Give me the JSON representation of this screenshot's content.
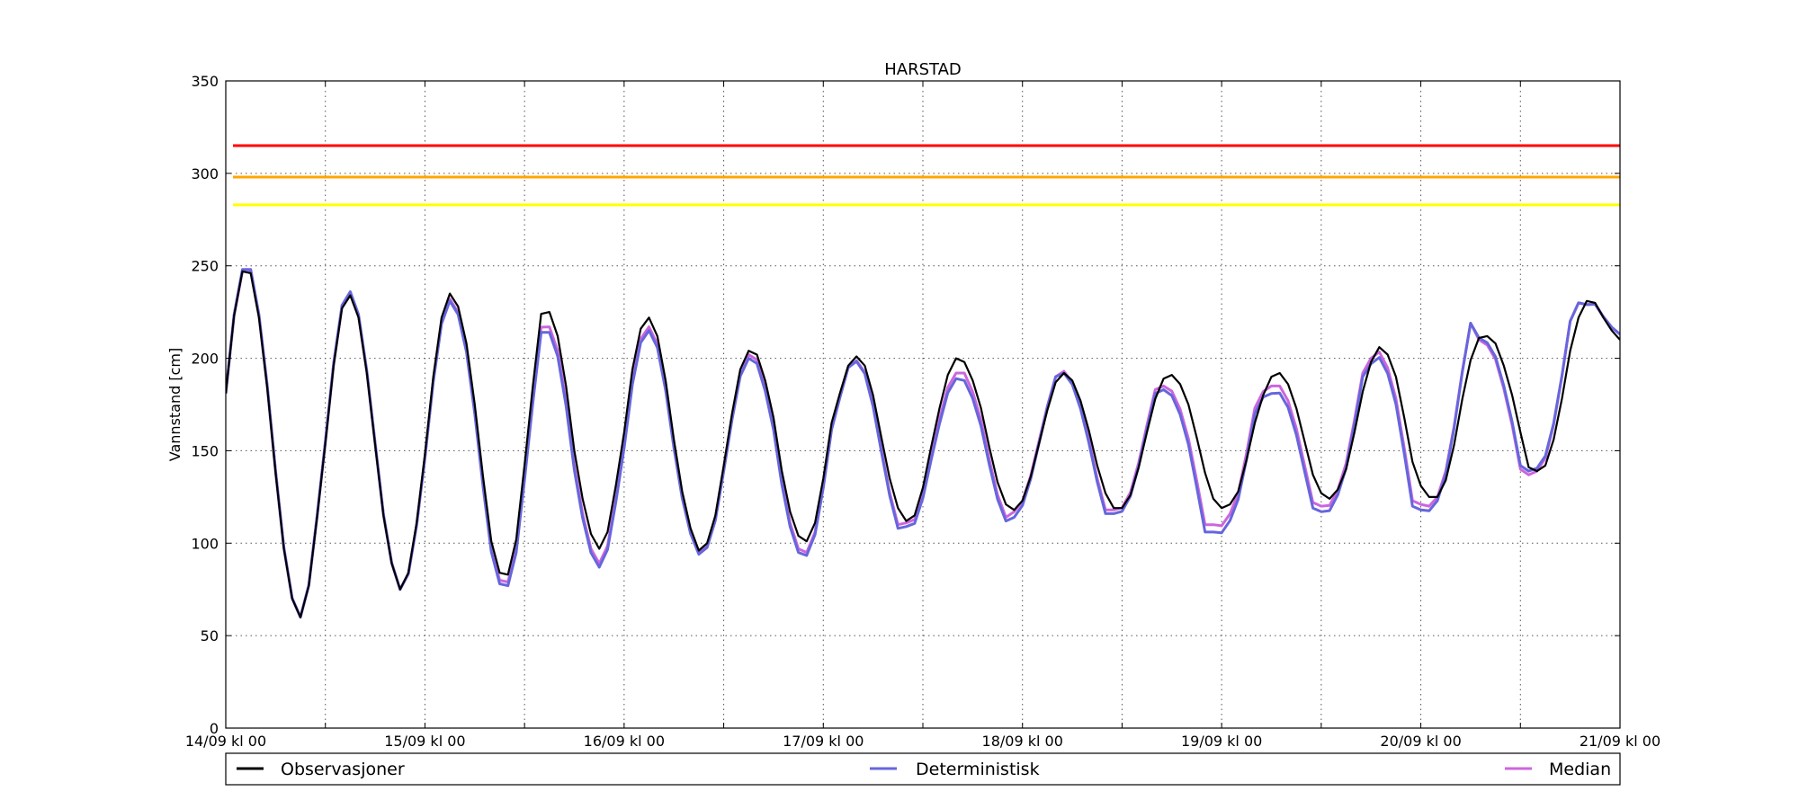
{
  "chart_data": {
    "type": "line",
    "title": "HARSTAD",
    "ylabel": "Vannstand [cm]",
    "xlabel": "",
    "ylim": [
      0,
      350
    ],
    "yticks": [
      "0",
      "50",
      "100",
      "150",
      "200",
      "250",
      "300",
      "350"
    ],
    "xlim_hours": [
      0,
      168
    ],
    "xticks": [
      "14/09 kl 00",
      "15/09 kl 00",
      "16/09 kl 00",
      "17/09 kl 00",
      "18/09 kl 00",
      "19/09 kl 00",
      "20/09 kl 00",
      "21/09 kl 00"
    ],
    "grid": true,
    "legend_position": "bottom",
    "thresholds": [
      {
        "value": 315,
        "color": "#ff0000"
      },
      {
        "value": 298,
        "color": "#ffa500"
      },
      {
        "value": 283,
        "color": "#ffff00"
      }
    ],
    "series": [
      {
        "name": "Observasjoner",
        "color": "#000000",
        "key_points": [
          [
            0,
            181
          ],
          [
            1,
            223
          ],
          [
            2,
            247
          ],
          [
            3,
            246
          ],
          [
            4,
            222
          ],
          [
            5,
            184
          ],
          [
            6,
            138
          ],
          [
            7,
            97
          ],
          [
            8,
            70
          ],
          [
            9,
            60
          ],
          [
            10,
            77
          ],
          [
            11,
            114
          ],
          [
            12,
            154
          ],
          [
            13,
            196
          ],
          [
            14,
            227
          ],
          [
            15,
            234
          ],
          [
            16,
            222
          ],
          [
            17,
            192
          ],
          [
            18,
            153
          ],
          [
            19,
            115
          ],
          [
            20,
            89
          ],
          [
            21,
            75
          ],
          [
            22,
            84
          ],
          [
            23,
            111
          ],
          [
            24,
            148
          ],
          [
            25,
            190
          ],
          [
            26,
            222
          ],
          [
            27,
            235
          ],
          [
            28,
            228
          ],
          [
            29,
            208
          ],
          [
            30,
            175
          ],
          [
            31,
            136
          ],
          [
            32,
            101
          ],
          [
            33,
            84
          ],
          [
            34,
            83
          ],
          [
            35,
            102
          ],
          [
            36,
            142
          ],
          [
            37,
            185
          ],
          [
            38,
            224
          ],
          [
            39,
            225
          ],
          [
            40,
            212
          ],
          [
            41,
            185
          ],
          [
            42,
            150
          ],
          [
            43,
            124
          ],
          [
            44,
            105
          ],
          [
            45,
            97
          ],
          [
            46,
            106
          ],
          [
            47,
            131
          ],
          [
            48,
            160
          ],
          [
            49,
            194
          ],
          [
            50,
            216
          ],
          [
            51,
            222
          ],
          [
            52,
            212
          ],
          [
            53,
            188
          ],
          [
            54,
            156
          ],
          [
            55,
            128
          ],
          [
            56,
            108
          ],
          [
            57,
            96
          ],
          [
            58,
            100
          ],
          [
            59,
            115
          ],
          [
            60,
            142
          ],
          [
            61,
            170
          ],
          [
            62,
            194
          ],
          [
            63,
            204
          ],
          [
            64,
            202
          ],
          [
            65,
            188
          ],
          [
            66,
            168
          ],
          [
            67,
            139
          ],
          [
            68,
            117
          ],
          [
            69,
            104
          ],
          [
            70,
            101
          ],
          [
            71,
            111
          ],
          [
            72,
            135
          ],
          [
            73,
            165
          ],
          [
            74,
            181
          ],
          [
            75,
            196
          ],
          [
            76,
            201
          ],
          [
            77,
            196
          ],
          [
            78,
            180
          ],
          [
            79,
            157
          ],
          [
            80,
            135
          ],
          [
            81,
            119
          ],
          [
            82,
            112
          ],
          [
            83,
            115
          ],
          [
            84,
            130
          ],
          [
            85,
            152
          ],
          [
            86,
            173
          ],
          [
            87,
            191
          ],
          [
            88,
            200
          ],
          [
            89,
            198
          ],
          [
            90,
            188
          ],
          [
            91,
            173
          ],
          [
            92,
            152
          ],
          [
            93,
            133
          ],
          [
            94,
            121
          ],
          [
            95,
            118
          ],
          [
            96,
            123
          ],
          [
            97,
            136
          ],
          [
            98,
            154
          ],
          [
            99,
            172
          ],
          [
            100,
            187
          ],
          [
            101,
            192
          ],
          [
            102,
            188
          ],
          [
            103,
            177
          ],
          [
            104,
            161
          ],
          [
            105,
            142
          ],
          [
            106,
            127
          ],
          [
            107,
            119
          ],
          [
            108,
            119
          ],
          [
            109,
            126
          ],
          [
            110,
            141
          ],
          [
            111,
            160
          ],
          [
            112,
            178
          ],
          [
            113,
            189
          ],
          [
            114,
            191
          ],
          [
            115,
            186
          ],
          [
            116,
            175
          ],
          [
            117,
            157
          ],
          [
            118,
            138
          ],
          [
            119,
            124
          ],
          [
            120,
            119
          ],
          [
            121,
            121
          ],
          [
            122,
            128
          ],
          [
            123,
            145
          ],
          [
            124,
            165
          ],
          [
            125,
            180
          ],
          [
            126,
            190
          ],
          [
            127,
            192
          ],
          [
            128,
            186
          ],
          [
            129,
            173
          ],
          [
            130,
            155
          ],
          [
            131,
            137
          ],
          [
            132,
            127
          ],
          [
            133,
            124
          ],
          [
            134,
            129
          ],
          [
            135,
            140
          ],
          [
            136,
            160
          ],
          [
            137,
            182
          ],
          [
            138,
            198
          ],
          [
            139,
            206
          ],
          [
            140,
            202
          ],
          [
            141,
            190
          ],
          [
            142,
            168
          ],
          [
            143,
            144
          ],
          [
            144,
            131
          ],
          [
            145,
            125
          ],
          [
            146,
            125
          ],
          [
            147,
            134
          ],
          [
            148,
            153
          ],
          [
            149,
            178
          ],
          [
            150,
            199
          ],
          [
            151,
            211
          ],
          [
            152,
            212
          ],
          [
            153,
            208
          ],
          [
            154,
            196
          ],
          [
            155,
            180
          ],
          [
            156,
            160
          ],
          [
            157,
            141
          ],
          [
            158,
            139
          ],
          [
            159,
            142
          ],
          [
            160,
            156
          ],
          [
            161,
            178
          ],
          [
            162,
            204
          ],
          [
            163,
            222
          ],
          [
            164,
            231
          ],
          [
            165,
            230
          ],
          [
            166,
            222
          ],
          [
            167,
            215
          ],
          [
            168,
            210
          ]
        ]
      },
      {
        "name": "Deterministisk",
        "color": "#6666dd",
        "key_points": [
          [
            0,
            181
          ],
          [
            2,
            248
          ],
          [
            3,
            248
          ],
          [
            9,
            60
          ],
          [
            15,
            236
          ],
          [
            21,
            75
          ],
          [
            27,
            231
          ],
          [
            33,
            78
          ],
          [
            34,
            77
          ],
          [
            39,
            214
          ],
          [
            45,
            87
          ],
          [
            51,
            215
          ],
          [
            57,
            94
          ],
          [
            63,
            200
          ],
          [
            69,
            95
          ],
          [
            75,
            195
          ],
          [
            81,
            108
          ],
          [
            82,
            109
          ],
          [
            88,
            189
          ],
          [
            89,
            188
          ],
          [
            94,
            112
          ],
          [
            95,
            114
          ],
          [
            100,
            190
          ],
          [
            101,
            192
          ],
          [
            106,
            116
          ],
          [
            107,
            116
          ],
          [
            112,
            181
          ],
          [
            113,
            183
          ],
          [
            118,
            106
          ],
          [
            119,
            106
          ],
          [
            124,
            170
          ],
          [
            125,
            179
          ],
          [
            126,
            181
          ],
          [
            131,
            119
          ],
          [
            132,
            117
          ],
          [
            137,
            190
          ],
          [
            138,
            197
          ],
          [
            143,
            120
          ],
          [
            144,
            118
          ],
          [
            150,
            219
          ],
          [
            151,
            211
          ],
          [
            156,
            142
          ],
          [
            157,
            139
          ],
          [
            162,
            220
          ],
          [
            163,
            230
          ],
          [
            164,
            229
          ],
          [
            168,
            213
          ]
        ]
      },
      {
        "name": "Median",
        "color": "#cc66dd",
        "key_points": [
          [
            0,
            181
          ],
          [
            2,
            247
          ],
          [
            3,
            247
          ],
          [
            9,
            60
          ],
          [
            15,
            235
          ],
          [
            21,
            75
          ],
          [
            27,
            232
          ],
          [
            33,
            80
          ],
          [
            34,
            79
          ],
          [
            39,
            217
          ],
          [
            45,
            89
          ],
          [
            51,
            217
          ],
          [
            57,
            95
          ],
          [
            63,
            202
          ],
          [
            69,
            97
          ],
          [
            75,
            195
          ],
          [
            81,
            110
          ],
          [
            82,
            111
          ],
          [
            88,
            192
          ],
          [
            89,
            192
          ],
          [
            94,
            114
          ],
          [
            95,
            117
          ],
          [
            100,
            190
          ],
          [
            101,
            193
          ],
          [
            106,
            118
          ],
          [
            107,
            118
          ],
          [
            112,
            183
          ],
          [
            113,
            185
          ],
          [
            118,
            110
          ],
          [
            119,
            110
          ],
          [
            124,
            173
          ],
          [
            125,
            182
          ],
          [
            126,
            185
          ],
          [
            131,
            122
          ],
          [
            132,
            120
          ],
          [
            137,
            192
          ],
          [
            138,
            200
          ],
          [
            143,
            123
          ],
          [
            144,
            121
          ],
          [
            150,
            219
          ],
          [
            151,
            210
          ],
          [
            156,
            140
          ],
          [
            157,
            137
          ],
          [
            162,
            220
          ],
          [
            163,
            230
          ],
          [
            164,
            229
          ],
          [
            168,
            213
          ]
        ]
      }
    ]
  }
}
